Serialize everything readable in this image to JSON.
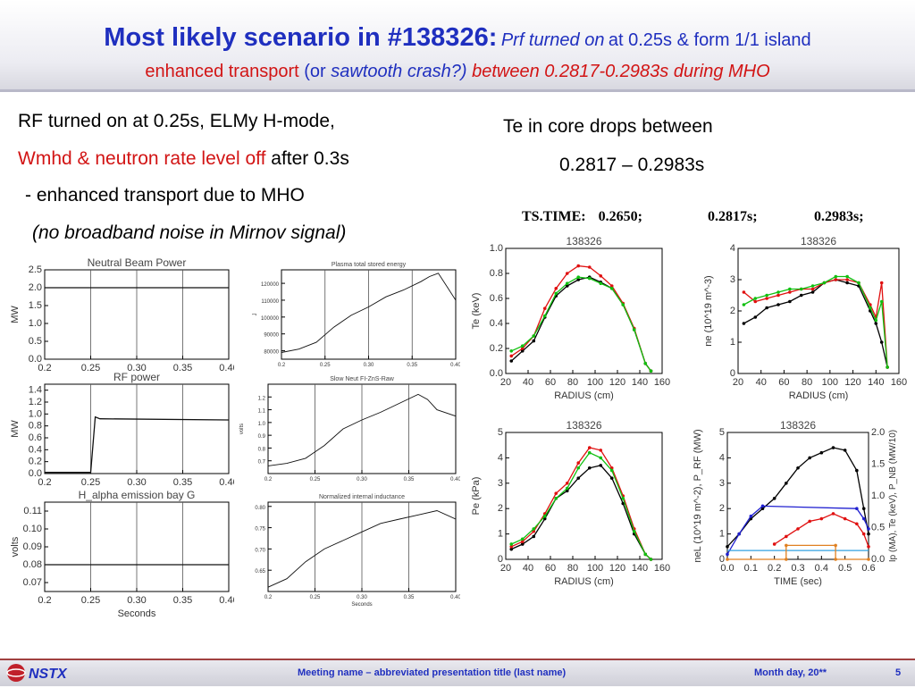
{
  "header": {
    "title_bold": "Most likely scenario in #138326:",
    "title_it": "Prf turned on",
    "title_rest": "at 0.25s & form 1/1 island",
    "sub_a": "enhanced transport",
    "sub_b": "(or",
    "sub_c": "sawtooth crash?)",
    "sub_d": "between 0.2817-0.2983s during MHO"
  },
  "left_text": {
    "line1": "RF turned on at 0.25s, ELMy H-mode,",
    "line2a": "Wmhd & neutron rate level off",
    "line2b": "after 0.3s",
    "line3": "- enhanced transport due to MHO",
    "line4": "(no broadband noise in Mirnov signal)"
  },
  "right_text": {
    "line1": "Te in core drops between",
    "line2": "0.2817 – 0.2983s"
  },
  "right_labels": {
    "ts_time": "TS.TIME:",
    "t1": "0.2650;",
    "t2": "0.2817s;",
    "t3": "0.2983s;"
  },
  "footer": {
    "logo": "NSTX",
    "meeting": "Meeting name – abbreviated presentation title (last name)",
    "date": "Month day, 20**",
    "page": "5"
  },
  "colors": {
    "title_blue": "#1f2fbf",
    "accent_red": "#d21414"
  },
  "chart_data": [
    {
      "type": "line",
      "title": "Neutral Beam Power",
      "ylabel": "MW",
      "xlabel": "",
      "xlim": [
        0.2,
        0.4
      ],
      "ylim": [
        0,
        2.5
      ],
      "x_ticks": [
        "0.2",
        "0.25",
        "0.30",
        "0.35",
        "0.40"
      ],
      "y_ticks": [
        "0.0",
        "0.5",
        "1.0",
        "1.5",
        "2.0",
        "2.5"
      ],
      "markers_x": [
        0.25,
        0.3,
        0.35
      ],
      "series": [
        {
          "x": [
            0.2,
            0.4
          ],
          "y": [
            2.0,
            2.0
          ]
        }
      ]
    },
    {
      "type": "line",
      "title": "Plasma total stored energy",
      "ylabel": "J",
      "xlabel": "",
      "xlim": [
        0.2,
        0.4
      ],
      "ylim": [
        75000,
        128000
      ],
      "x_ticks": [
        "0.2",
        "0.25",
        "0.30",
        "0.35",
        "0.40"
      ],
      "y_ticks": [
        "80000",
        "90000",
        "100000",
        "110000",
        "120000"
      ],
      "markers_x": [
        0.25,
        0.3,
        0.35
      ],
      "series": [
        {
          "x": [
            0.2,
            0.22,
            0.24,
            0.26,
            0.28,
            0.3,
            0.32,
            0.34,
            0.36,
            0.37,
            0.38,
            0.39,
            0.4
          ],
          "y": [
            79000,
            81000,
            85000,
            94000,
            101000,
            106000,
            112000,
            116000,
            121000,
            124000,
            126000,
            118000,
            110000
          ]
        }
      ]
    },
    {
      "type": "line",
      "title": "RF power",
      "ylabel": "MW",
      "xlabel": "",
      "xlim": [
        0.2,
        0.4
      ],
      "ylim": [
        0,
        1.5
      ],
      "x_ticks": [
        "0.2",
        "0.25",
        "0.30",
        "0.35",
        "0.40"
      ],
      "y_ticks": [
        "0.0",
        "0.2",
        "0.4",
        "0.6",
        "0.8",
        "1.0",
        "1.2",
        "1.4"
      ],
      "markers_x": [
        0.25,
        0.3,
        0.35
      ],
      "series": [
        {
          "x": [
            0.2,
            0.25,
            0.255,
            0.26,
            0.4
          ],
          "y": [
            0.02,
            0.02,
            0.95,
            0.92,
            0.9
          ]
        }
      ]
    },
    {
      "type": "line",
      "title": "Slow Neut FI-ZnS-Raw",
      "ylabel": "volts",
      "xlabel": "",
      "xlim": [
        0.2,
        0.4
      ],
      "ylim": [
        0.6,
        1.3
      ],
      "x_ticks": [
        "0.2",
        "0.25",
        "0.30",
        "0.35",
        "0.40"
      ],
      "y_ticks": [
        "0.7",
        "0.8",
        "0.9",
        "1.0",
        "1.1",
        "1.2"
      ],
      "markers_x": [
        0.25,
        0.3,
        0.35
      ],
      "series": [
        {
          "x": [
            0.2,
            0.22,
            0.24,
            0.26,
            0.28,
            0.3,
            0.32,
            0.34,
            0.36,
            0.37,
            0.38,
            0.4
          ],
          "y": [
            0.66,
            0.68,
            0.72,
            0.82,
            0.95,
            1.02,
            1.08,
            1.15,
            1.22,
            1.18,
            1.1,
            1.05
          ]
        }
      ]
    },
    {
      "type": "line",
      "title": "H_alpha emission bay G",
      "ylabel": "volts",
      "xlabel": "Seconds",
      "xlim": [
        0.2,
        0.4
      ],
      "ylim": [
        0.065,
        0.115
      ],
      "x_ticks": [
        "0.2",
        "0.25",
        "0.30",
        "0.35",
        "0.40"
      ],
      "y_ticks": [
        "0.07",
        "0.08",
        "0.09",
        "0.10",
        "0.11"
      ],
      "markers_x": [
        0.25,
        0.3,
        0.35
      ],
      "series": [
        {
          "x": [
            0.2,
            0.4
          ],
          "y": [
            0.08,
            0.08
          ]
        }
      ]
    },
    {
      "type": "line",
      "title": "Normalized internal inductance",
      "ylabel": "",
      "xlabel": "Seconds",
      "xlim": [
        0.2,
        0.4
      ],
      "ylim": [
        0.6,
        0.81
      ],
      "x_ticks": [
        "0.2",
        "0.25",
        "0.30",
        "0.35",
        "0.40"
      ],
      "y_ticks": [
        "0.65",
        "0.70",
        "0.75",
        "0.80"
      ],
      "markers_x": [
        0.25,
        0.3,
        0.35
      ],
      "series": [
        {
          "x": [
            0.2,
            0.22,
            0.24,
            0.26,
            0.28,
            0.3,
            0.32,
            0.34,
            0.36,
            0.38,
            0.4
          ],
          "y": [
            0.61,
            0.63,
            0.67,
            0.7,
            0.72,
            0.74,
            0.76,
            0.77,
            0.78,
            0.79,
            0.77
          ]
        }
      ]
    },
    {
      "type": "line",
      "title": "138326",
      "xlabel": "RADIUS (cm)",
      "ylabel": "Te (keV)",
      "xlim": [
        20,
        160
      ],
      "ylim": [
        0,
        1.0
      ],
      "x_ticks": [
        "20",
        "40",
        "60",
        "80",
        "100",
        "120",
        "140",
        "160"
      ],
      "y_ticks": [
        "0.0",
        "0.2",
        "0.4",
        "0.6",
        "0.8",
        "1.0"
      ],
      "series": [
        {
          "color": "#000000",
          "x": [
            25,
            35,
            45,
            55,
            65,
            75,
            85,
            95,
            105,
            115,
            125,
            135,
            145,
            150
          ],
          "y": [
            0.1,
            0.18,
            0.26,
            0.45,
            0.62,
            0.7,
            0.75,
            0.77,
            0.73,
            0.68,
            0.55,
            0.35,
            0.08,
            0.02
          ]
        },
        {
          "color": "#e01010",
          "x": [
            25,
            35,
            45,
            55,
            65,
            75,
            85,
            95,
            105,
            115,
            125,
            135,
            145,
            150
          ],
          "y": [
            0.14,
            0.2,
            0.3,
            0.52,
            0.68,
            0.8,
            0.86,
            0.85,
            0.78,
            0.7,
            0.56,
            0.36,
            0.08,
            0.02
          ]
        },
        {
          "color": "#10c010",
          "x": [
            25,
            35,
            45,
            55,
            65,
            75,
            85,
            95,
            105,
            115,
            125,
            135,
            145,
            150
          ],
          "y": [
            0.18,
            0.22,
            0.3,
            0.46,
            0.64,
            0.72,
            0.77,
            0.76,
            0.72,
            0.68,
            0.55,
            0.35,
            0.08,
            0.02
          ]
        }
      ]
    },
    {
      "type": "line",
      "title": "138326",
      "xlabel": "RADIUS (cm)",
      "ylabel": "ne (10^19 m^-3)",
      "xlim": [
        20,
        160
      ],
      "ylim": [
        0,
        4
      ],
      "x_ticks": [
        "20",
        "40",
        "60",
        "80",
        "100",
        "120",
        "140",
        "160"
      ],
      "y_ticks": [
        "0",
        "1",
        "2",
        "3",
        "4"
      ],
      "series": [
        {
          "color": "#000000",
          "x": [
            25,
            35,
            45,
            55,
            65,
            75,
            85,
            95,
            105,
            115,
            125,
            135,
            140,
            145,
            150
          ],
          "y": [
            1.6,
            1.8,
            2.1,
            2.2,
            2.3,
            2.5,
            2.6,
            2.9,
            3.0,
            2.9,
            2.8,
            2.0,
            1.6,
            1.0,
            0.2
          ]
        },
        {
          "color": "#e01010",
          "x": [
            25,
            35,
            45,
            55,
            65,
            75,
            85,
            95,
            105,
            115,
            125,
            135,
            140,
            145,
            150
          ],
          "y": [
            2.6,
            2.3,
            2.4,
            2.5,
            2.6,
            2.7,
            2.7,
            2.9,
            3.0,
            3.0,
            2.9,
            2.2,
            1.8,
            2.9,
            0.2
          ]
        },
        {
          "color": "#10c010",
          "x": [
            25,
            35,
            45,
            55,
            65,
            75,
            85,
            95,
            105,
            115,
            125,
            135,
            140,
            145,
            150
          ],
          "y": [
            2.2,
            2.4,
            2.5,
            2.6,
            2.7,
            2.7,
            2.8,
            2.9,
            3.1,
            3.1,
            2.9,
            2.1,
            1.7,
            2.3,
            0.2
          ]
        }
      ]
    },
    {
      "type": "line",
      "title": "138326",
      "xlabel": "RADIUS (cm)",
      "ylabel": "Pe (kPa)",
      "xlim": [
        20,
        160
      ],
      "ylim": [
        0,
        5
      ],
      "x_ticks": [
        "20",
        "40",
        "60",
        "80",
        "100",
        "120",
        "140",
        "160"
      ],
      "y_ticks": [
        "0",
        "1",
        "2",
        "3",
        "4",
        "5"
      ],
      "series": [
        {
          "color": "#000000",
          "x": [
            25,
            35,
            45,
            55,
            65,
            75,
            85,
            95,
            105,
            115,
            125,
            135,
            145,
            150
          ],
          "y": [
            0.4,
            0.6,
            0.9,
            1.6,
            2.4,
            2.7,
            3.2,
            3.6,
            3.7,
            3.2,
            2.2,
            1.0,
            0.2,
            0.0
          ]
        },
        {
          "color": "#e01010",
          "x": [
            25,
            35,
            45,
            55,
            65,
            75,
            85,
            95,
            105,
            115,
            125,
            135,
            145,
            150
          ],
          "y": [
            0.5,
            0.7,
            1.1,
            1.8,
            2.6,
            3.0,
            3.8,
            4.4,
            4.3,
            3.6,
            2.5,
            1.2,
            0.2,
            0.0
          ]
        },
        {
          "color": "#10c010",
          "x": [
            25,
            35,
            45,
            55,
            65,
            75,
            85,
            95,
            105,
            115,
            125,
            135,
            145,
            150
          ],
          "y": [
            0.6,
            0.8,
            1.2,
            1.7,
            2.4,
            2.8,
            3.6,
            4.2,
            4.0,
            3.5,
            2.4,
            1.1,
            0.2,
            0.0
          ]
        }
      ]
    },
    {
      "type": "line",
      "title": "138326",
      "xlabel": "TIME (sec)",
      "ylabel": "neL (10^19 m^-2), P_RF (MW)",
      "y2label": "Ip (MA), Te (keV), P_NB (MW/10)",
      "xlim": [
        0,
        0.6
      ],
      "ylim": [
        0,
        5
      ],
      "y2lim": [
        0,
        2.0
      ],
      "x_ticks": [
        "0.0",
        "0.1",
        "0.2",
        "0.3",
        "0.4",
        "0.5",
        "0.6"
      ],
      "y_ticks": [
        "0",
        "1",
        "2",
        "3",
        "4",
        "5"
      ],
      "y2_ticks": [
        "0.0",
        "0.5",
        "1.0",
        "1.5",
        "2.0"
      ],
      "series": [
        {
          "color": "#000000",
          "x": [
            0,
            0.05,
            0.1,
            0.15,
            0.2,
            0.25,
            0.3,
            0.35,
            0.4,
            0.45,
            0.5,
            0.55,
            0.58,
            0.6
          ],
          "y": [
            0.5,
            1.0,
            1.6,
            2.0,
            2.4,
            3.0,
            3.6,
            4.0,
            4.2,
            4.4,
            4.3,
            3.5,
            2.0,
            1.0
          ]
        },
        {
          "color": "#e01010",
          "x": [
            0.2,
            0.25,
            0.3,
            0.35,
            0.4,
            0.45,
            0.5,
            0.55,
            0.58,
            0.6
          ],
          "y": [
            0.6,
            0.9,
            1.2,
            1.5,
            1.6,
            1.8,
            1.6,
            1.4,
            1.0,
            0.5
          ]
        },
        {
          "color": "#2020d0",
          "x": [
            0,
            0.05,
            0.1,
            0.15,
            0.55,
            0.58,
            0.6
          ],
          "y": [
            0.2,
            1.0,
            1.7,
            2.1,
            2.0,
            1.6,
            1.2
          ]
        },
        {
          "color": "#30a0e0",
          "x": [
            0,
            0.6
          ],
          "y": [
            0.35,
            0.35
          ]
        },
        {
          "color": "#e08020",
          "x": [
            0,
            0.25,
            0.25,
            0.46,
            0.46,
            0.6
          ],
          "y": [
            0.0,
            0.0,
            0.55,
            0.55,
            0.0,
            0.0
          ]
        }
      ]
    }
  ]
}
